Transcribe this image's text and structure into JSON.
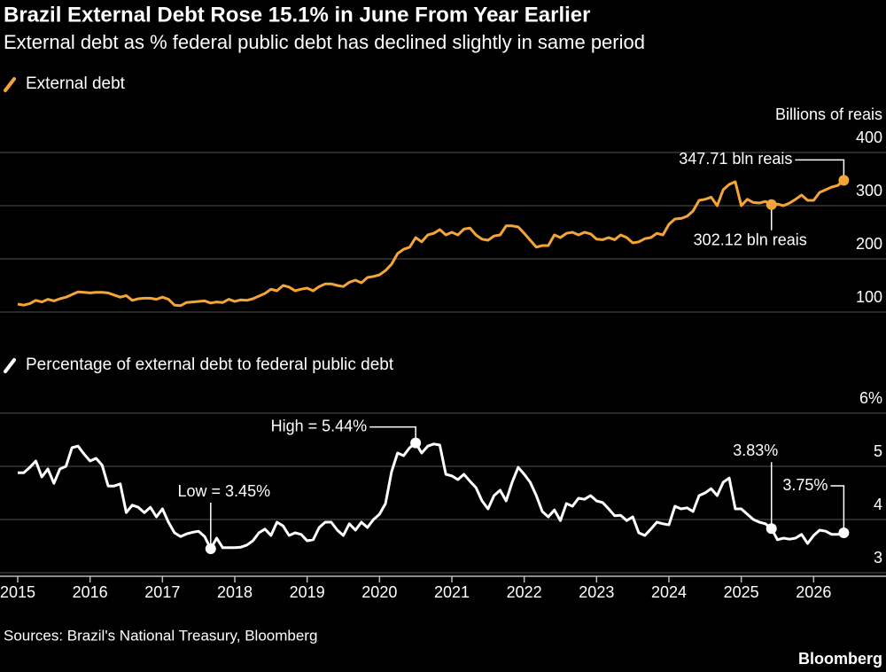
{
  "title": "Brazil External Debt Rose 15.1% in June From Year Earlier",
  "subtitle": "External debt as % federal public debt has declined slightly in same period",
  "source": "Sources: Brazil's National Treasury, Bloomberg",
  "credit": "Bloomberg",
  "chart_data": [
    {
      "type": "line",
      "y_label": "Billions of reais",
      "xlim": [
        2015,
        2027
      ],
      "ylim": [
        85,
        400
      ],
      "yticks": [
        100,
        200,
        300,
        400
      ],
      "grid": true,
      "x": [
        2015,
        2015.083,
        2015.167,
        2015.25,
        2015.333,
        2015.417,
        2015.5,
        2015.583,
        2015.667,
        2015.75,
        2015.833,
        2015.917,
        2016,
        2016.083,
        2016.167,
        2016.25,
        2016.333,
        2016.417,
        2016.5,
        2016.583,
        2016.667,
        2016.75,
        2016.833,
        2016.917,
        2017,
        2017.083,
        2017.167,
        2017.25,
        2017.333,
        2017.417,
        2017.5,
        2017.583,
        2017.667,
        2017.75,
        2017.833,
        2017.917,
        2018,
        2018.083,
        2018.167,
        2018.25,
        2018.333,
        2018.417,
        2018.5,
        2018.583,
        2018.667,
        2018.75,
        2018.833,
        2018.917,
        2019,
        2019.083,
        2019.167,
        2019.25,
        2019.333,
        2019.417,
        2019.5,
        2019.583,
        2019.667,
        2019.75,
        2019.833,
        2019.917,
        2020,
        2020.083,
        2020.167,
        2020.25,
        2020.333,
        2020.417,
        2020.5,
        2020.583,
        2020.667,
        2020.75,
        2020.833,
        2020.917,
        2021,
        2021.083,
        2021.167,
        2021.25,
        2021.333,
        2021.417,
        2021.5,
        2021.583,
        2021.667,
        2021.75,
        2021.833,
        2021.917,
        2022,
        2022.083,
        2022.167,
        2022.25,
        2022.333,
        2022.417,
        2022.5,
        2022.583,
        2022.667,
        2022.75,
        2022.833,
        2022.917,
        2023,
        2023.083,
        2023.167,
        2023.25,
        2023.333,
        2023.417,
        2023.5,
        2023.583,
        2023.667,
        2023.75,
        2023.833,
        2023.917,
        2024,
        2024.083,
        2024.167,
        2024.25,
        2024.333,
        2024.417,
        2024.5,
        2024.583,
        2024.667,
        2024.75,
        2024.833,
        2024.917,
        2025,
        2025.083,
        2025.167,
        2025.25,
        2025.333,
        2025.417,
        2025.5,
        2025.583,
        2025.667,
        2025.75,
        2025.833,
        2025.917,
        2026,
        2026.083,
        2026.167,
        2026.25,
        2026.333,
        2026.417
      ],
      "series": [
        {
          "name": "External debt",
          "color": "#f5a537",
          "values": [
            115,
            113,
            116,
            122,
            119,
            124,
            121,
            125,
            128,
            133,
            138,
            137,
            136,
            137,
            137,
            136,
            132,
            128,
            131,
            122,
            125,
            126,
            126,
            124,
            128,
            124,
            113,
            112,
            118,
            119,
            120,
            121,
            117,
            119,
            118,
            124,
            120,
            123,
            122,
            125,
            130,
            135,
            143,
            140,
            150,
            147,
            140,
            143,
            145,
            140,
            148,
            153,
            153,
            150,
            148,
            156,
            160,
            155,
            165,
            167,
            170,
            178,
            190,
            210,
            218,
            222,
            240,
            232,
            245,
            248,
            255,
            245,
            250,
            245,
            256,
            258,
            245,
            237,
            235,
            243,
            245,
            262,
            262,
            260,
            248,
            235,
            222,
            225,
            225,
            245,
            240,
            248,
            250,
            245,
            250,
            247,
            237,
            236,
            240,
            236,
            245,
            240,
            230,
            232,
            238,
            240,
            248,
            245,
            265,
            275,
            276,
            280,
            290,
            310,
            312,
            316,
            300,
            330,
            340,
            345,
            300,
            312,
            306,
            305,
            308,
            302.12,
            303,
            300,
            305,
            312,
            320,
            310,
            310,
            325,
            330,
            335,
            338,
            347.71
          ],
          "value_labels": [
            null,
            null,
            null,
            null,
            null,
            null,
            null,
            null,
            null,
            null,
            null,
            null,
            null,
            null,
            null,
            null,
            null,
            null,
            null,
            null,
            null,
            null,
            null,
            null,
            null,
            null,
            null,
            null,
            null,
            null,
            null,
            null,
            null,
            null,
            null,
            null,
            null,
            null,
            null,
            null,
            null,
            null,
            null,
            null,
            null,
            null,
            null,
            null,
            null,
            null,
            null,
            null,
            null,
            null,
            null,
            null,
            null,
            null,
            null,
            null,
            null,
            null,
            null,
            null,
            null,
            null,
            null,
            null,
            null,
            null,
            null,
            null,
            null,
            null,
            null,
            null,
            null,
            null,
            null,
            null,
            null,
            null,
            null,
            null,
            null,
            null,
            null,
            null,
            null,
            null,
            null,
            null,
            null,
            null,
            null,
            null,
            null,
            null,
            null,
            null,
            null,
            null,
            null,
            null,
            null,
            null,
            null,
            null,
            null,
            null,
            null,
            null,
            null,
            null,
            null,
            null,
            null,
            null,
            null,
            null,
            null,
            null,
            null,
            null,
            null,
            "302.12 bln reais",
            null,
            null,
            null,
            null,
            null,
            null,
            null,
            null,
            null,
            null,
            null,
            "347.71 bln reais"
          ]
        }
      ]
    },
    {
      "type": "line",
      "xlim": [
        2015,
        2027
      ],
      "ylim": [
        2.95,
        6
      ],
      "yticks": [
        3,
        4,
        5,
        {
          "value": 6,
          "label": "6%"
        }
      ],
      "xticks": [
        2015,
        2016,
        2017,
        2018,
        2019,
        2020,
        2021,
        2022,
        2023,
        2024,
        2025,
        2026
      ],
      "grid": true,
      "x": [
        2015,
        2015.083,
        2015.167,
        2015.25,
        2015.333,
        2015.417,
        2015.5,
        2015.583,
        2015.667,
        2015.75,
        2015.833,
        2015.917,
        2016,
        2016.083,
        2016.167,
        2016.25,
        2016.333,
        2016.417,
        2016.5,
        2016.583,
        2016.667,
        2016.75,
        2016.833,
        2016.917,
        2017,
        2017.083,
        2017.167,
        2017.25,
        2017.333,
        2017.417,
        2017.5,
        2017.583,
        2017.667,
        2017.75,
        2017.833,
        2017.917,
        2018,
        2018.083,
        2018.167,
        2018.25,
        2018.333,
        2018.417,
        2018.5,
        2018.583,
        2018.667,
        2018.75,
        2018.833,
        2018.917,
        2019,
        2019.083,
        2019.167,
        2019.25,
        2019.333,
        2019.417,
        2019.5,
        2019.583,
        2019.667,
        2019.75,
        2019.833,
        2019.917,
        2020,
        2020.083,
        2020.167,
        2020.25,
        2020.333,
        2020.417,
        2020.5,
        2020.583,
        2020.667,
        2020.75,
        2020.833,
        2020.917,
        2021,
        2021.083,
        2021.167,
        2021.25,
        2021.333,
        2021.417,
        2021.5,
        2021.583,
        2021.667,
        2021.75,
        2021.833,
        2021.917,
        2022,
        2022.083,
        2022.167,
        2022.25,
        2022.333,
        2022.417,
        2022.5,
        2022.583,
        2022.667,
        2022.75,
        2022.833,
        2022.917,
        2023,
        2023.083,
        2023.167,
        2023.25,
        2023.333,
        2023.417,
        2023.5,
        2023.583,
        2023.667,
        2023.75,
        2023.833,
        2023.917,
        2024,
        2024.083,
        2024.167,
        2024.25,
        2024.333,
        2024.417,
        2024.5,
        2024.583,
        2024.667,
        2024.75,
        2024.833,
        2024.917,
        2025,
        2025.083,
        2025.167,
        2025.25,
        2025.333,
        2025.417,
        2025.5,
        2025.583,
        2025.667,
        2025.75,
        2025.833,
        2025.917,
        2026,
        2026.083,
        2026.167,
        2026.25,
        2026.333,
        2026.417
      ],
      "series": [
        {
          "name": "Percentage of external debt to federal public debt",
          "color": "#ffffff",
          "values": [
            4.88,
            4.88,
            4.98,
            5.1,
            4.8,
            4.95,
            4.68,
            4.95,
            5.0,
            5.35,
            5.38,
            5.23,
            5.1,
            5.15,
            5.02,
            4.63,
            4.63,
            4.67,
            4.13,
            4.27,
            4.23,
            4.13,
            4.23,
            4.05,
            4.2,
            3.95,
            3.75,
            3.68,
            3.73,
            3.76,
            3.78,
            3.68,
            3.45,
            3.65,
            3.47,
            3.47,
            3.47,
            3.48,
            3.52,
            3.6,
            3.75,
            3.82,
            3.7,
            3.95,
            3.88,
            3.7,
            3.75,
            3.72,
            3.6,
            3.62,
            3.85,
            3.95,
            3.95,
            3.8,
            3.7,
            3.92,
            3.8,
            3.95,
            3.85,
            4.0,
            4.1,
            4.3,
            4.9,
            5.25,
            5.2,
            5.35,
            5.44,
            5.25,
            5.38,
            5.42,
            5.4,
            4.85,
            4.82,
            4.75,
            4.85,
            4.72,
            4.6,
            4.35,
            4.2,
            4.45,
            4.55,
            4.35,
            4.7,
            4.98,
            4.85,
            4.7,
            4.45,
            4.15,
            4.05,
            4.18,
            3.98,
            4.3,
            4.25,
            4.4,
            4.38,
            4.45,
            4.35,
            4.32,
            4.2,
            4.07,
            4.08,
            3.98,
            4.05,
            3.75,
            3.7,
            3.82,
            3.95,
            3.92,
            3.9,
            4.25,
            4.2,
            4.22,
            4.15,
            4.45,
            4.5,
            4.58,
            4.45,
            4.7,
            4.78,
            4.2,
            4.2,
            4.1,
            4.0,
            3.95,
            3.92,
            3.83,
            3.62,
            3.65,
            3.63,
            3.65,
            3.72,
            3.55,
            3.7,
            3.8,
            3.78,
            3.72,
            3.72,
            3.75
          ],
          "value_labels": [
            null,
            null,
            null,
            null,
            null,
            null,
            null,
            null,
            null,
            null,
            null,
            null,
            null,
            null,
            null,
            null,
            null,
            null,
            null,
            null,
            null,
            null,
            null,
            null,
            null,
            null,
            null,
            null,
            null,
            null,
            null,
            null,
            "Low = 3.45%",
            null,
            null,
            null,
            null,
            null,
            null,
            null,
            null,
            null,
            null,
            null,
            null,
            null,
            null,
            null,
            null,
            null,
            null,
            null,
            null,
            null,
            null,
            null,
            null,
            null,
            null,
            null,
            null,
            null,
            null,
            null,
            null,
            null,
            "High = 5.44%",
            null,
            null,
            null,
            null,
            null,
            null,
            null,
            null,
            null,
            null,
            null,
            null,
            null,
            null,
            null,
            null,
            null,
            null,
            null,
            null,
            null,
            null,
            null,
            null,
            null,
            null,
            null,
            null,
            null,
            null,
            null,
            null,
            null,
            null,
            null,
            null,
            null,
            null,
            null,
            null,
            null,
            null,
            null,
            null,
            null,
            null,
            null,
            null,
            null,
            null,
            null,
            null,
            null,
            null,
            null,
            null,
            null,
            null,
            "3.83%",
            null,
            null,
            null,
            null,
            null,
            null,
            null,
            null,
            null,
            null,
            null,
            "3.75%"
          ]
        }
      ]
    }
  ]
}
